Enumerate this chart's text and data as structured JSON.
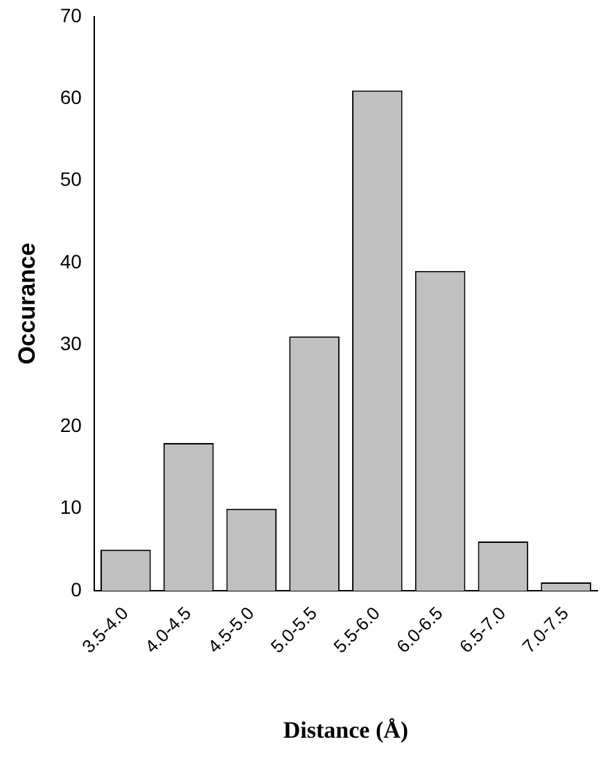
{
  "chart_data": {
    "type": "bar",
    "xlabel": "Distance (Å)",
    "ylabel": "Occurance",
    "categories": [
      "3.5-4.0",
      "4.0-4.5",
      "4.5-5.0",
      "5.0-5.5",
      "5.5-6.0",
      "6.0-6.5",
      "6.5-7.0",
      "7.0-7.5"
    ],
    "values": [
      5,
      18,
      10,
      31,
      61,
      39,
      6,
      1
    ],
    "color": "#c0c0c0",
    "ylim": [
      0,
      70
    ],
    "yticks": [
      0,
      10,
      20,
      30,
      40,
      50,
      60,
      70
    ],
    "grid": false,
    "legend": false
  }
}
